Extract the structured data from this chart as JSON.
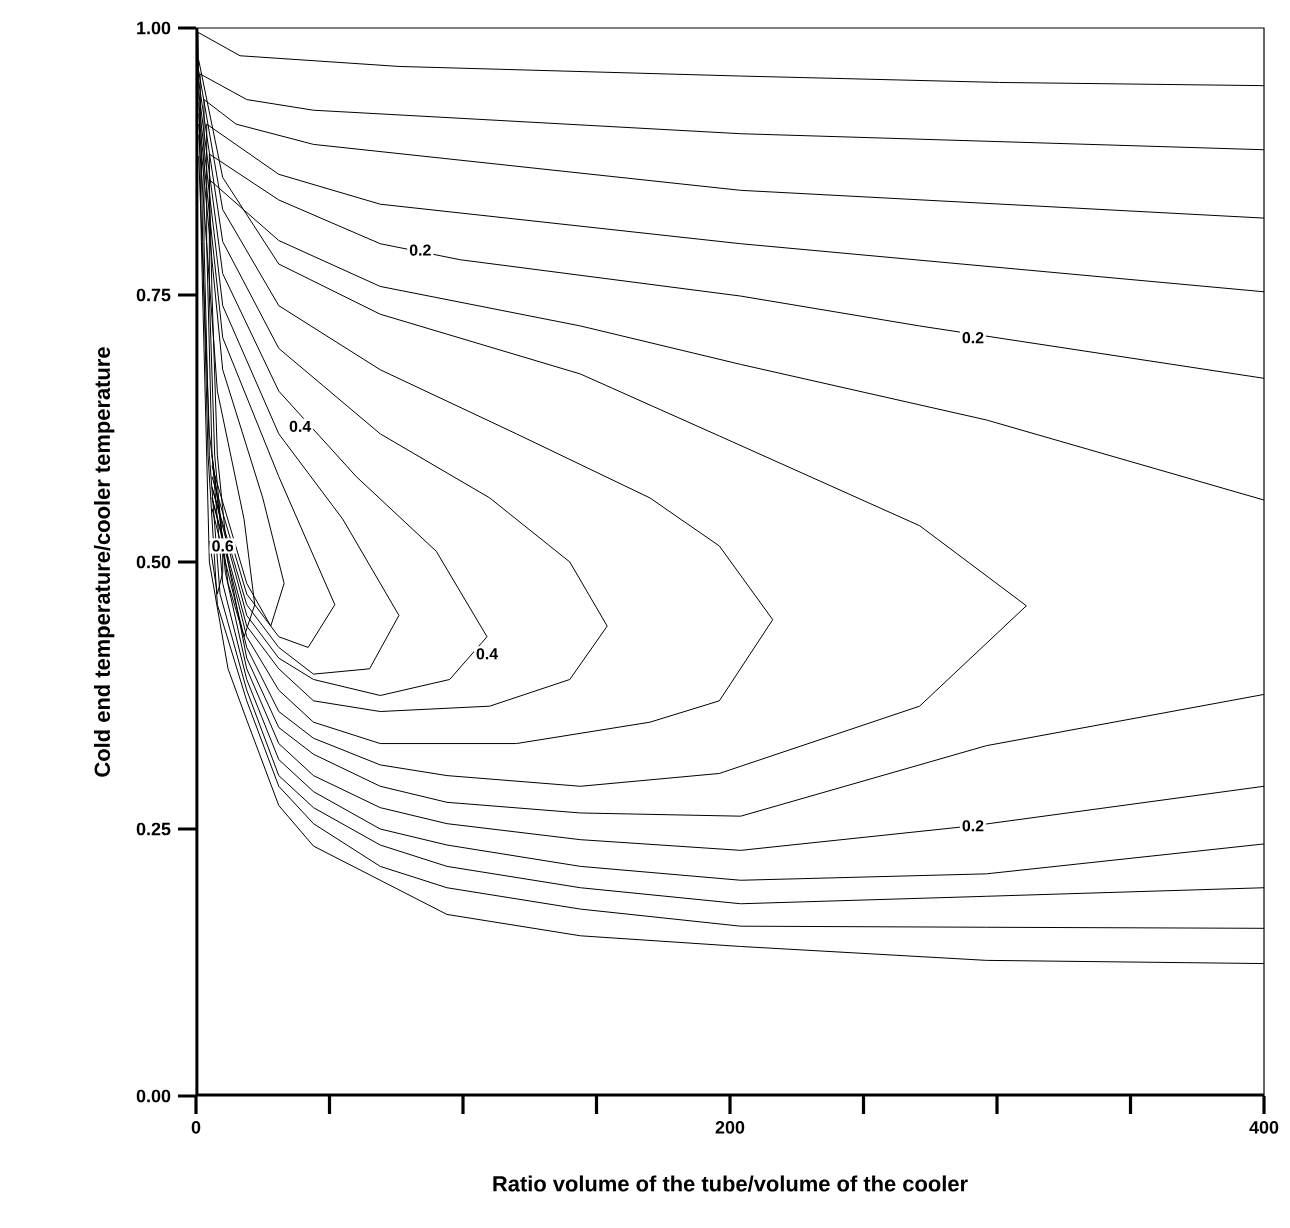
{
  "chart_data": {
    "type": "line",
    "xlabel": "Ratio volume of the tube/volume of the cooler",
    "ylabel": "Cold end temperature/cooler temperature",
    "xlim": [
      0,
      400
    ],
    "ylim": [
      0,
      1
    ],
    "xticks": [
      0,
      {
        "value": 50,
        "label": null
      },
      {
        "value": 100,
        "label": null
      },
      {
        "value": 150,
        "label": null
      },
      200,
      {
        "value": 250,
        "label": null
      },
      {
        "value": 300,
        "label": null
      },
      {
        "value": 350,
        "label": null
      },
      400
    ],
    "yticks": [
      {
        "value": 0,
        "label": "0.00"
      },
      {
        "value": 0.25,
        "label": "0.25"
      },
      {
        "value": 0.5,
        "label": "0.50"
      },
      {
        "value": 0.75,
        "label": "0.75"
      },
      {
        "value": 1,
        "label": "1.00"
      }
    ],
    "series": [
      {
        "color": "#000000",
        "x": [
          400,
          301,
          204,
          76,
          16.5,
          0.7,
          2,
          3,
          5,
          12,
          19,
          31,
          44,
          69,
          94,
          144,
          204,
          296,
          400
        ],
        "values": [
          0.946,
          0.949,
          0.955,
          0.964,
          0.974,
          0.996,
          0.8,
          0.7,
          0.5,
          0.4,
          0.352,
          0.272,
          0.234,
          0.202,
          0.17,
          0.15,
          0.14,
          0.127,
          0.124
        ]
      },
      {
        "color": "#000000",
        "x": [
          400,
          204,
          44,
          19,
          1.5,
          2.5,
          4.5,
          8,
          19,
          31,
          44,
          69,
          94,
          144,
          204,
          296,
          400
        ],
        "values": [
          0.886,
          0.901,
          0.923,
          0.933,
          0.957,
          0.8,
          0.6,
          0.46,
          0.37,
          0.29,
          0.255,
          0.215,
          0.195,
          0.175,
          0.159,
          0.158,
          0.157
        ]
      },
      {
        "color": "#000000",
        "x": [
          400,
          204,
          44,
          15,
          3,
          3,
          5,
          9,
          19,
          31,
          44,
          69,
          94,
          144,
          204,
          296,
          400
        ],
        "values": [
          0.822,
          0.848,
          0.891,
          0.91,
          0.933,
          0.8,
          0.6,
          0.47,
          0.38,
          0.3,
          0.27,
          0.235,
          0.215,
          0.195,
          0.18,
          0.187,
          0.195
        ]
      },
      {
        "color": "#000000",
        "x": [
          400,
          204,
          69,
          31,
          4,
          4,
          6,
          10,
          19,
          31,
          44,
          69,
          94,
          144,
          204,
          296,
          400
        ],
        "values": [
          0.753,
          0.798,
          0.835,
          0.863,
          0.91,
          0.8,
          0.6,
          0.48,
          0.39,
          0.315,
          0.285,
          0.25,
          0.235,
          0.215,
          0.202,
          0.208,
          0.236
        ]
      },
      {
        "color": "#000000",
        "x": [
          400,
          271,
          204,
          99,
          69,
          31,
          5,
          5,
          7,
          11,
          19,
          31,
          44,
          69,
          94,
          144,
          204,
          291,
          400
        ],
        "values": [
          0.672,
          0.721,
          0.749,
          0.783,
          0.798,
          0.839,
          0.882,
          0.75,
          0.6,
          0.49,
          0.4,
          0.33,
          0.3,
          0.27,
          0.255,
          0.24,
          0.23,
          0.253,
          0.29
        ]
      },
      {
        "color": "#000000",
        "x": [
          400,
          296,
          204,
          144,
          69,
          31,
          5,
          6,
          8,
          12,
          19,
          31,
          44,
          69,
          94,
          144,
          204,
          296,
          400
        ],
        "values": [
          0.558,
          0.633,
          0.685,
          0.721,
          0.758,
          0.801,
          0.858,
          0.75,
          0.6,
          0.5,
          0.41,
          0.345,
          0.32,
          0.29,
          0.275,
          0.265,
          0.262,
          0.328,
          0.376
        ]
      },
      {
        "color": "#000000",
        "x": [
          1,
          10,
          31,
          69,
          144,
          196,
          271,
          311,
          271,
          196,
          144,
          94,
          69,
          44,
          31,
          19,
          6
        ],
        "values": [
          0.97,
          0.86,
          0.779,
          0.732,
          0.676,
          0.618,
          0.534,
          0.459,
          0.365,
          0.302,
          0.29,
          0.3,
          0.31,
          0.335,
          0.36,
          0.42,
          0.55
        ]
      },
      {
        "color": "#000000",
        "x": [
          1,
          10,
          31,
          69,
          120,
          170,
          196,
          216,
          196,
          170,
          120,
          69,
          44,
          31,
          19,
          6
        ],
        "values": [
          0.96,
          0.83,
          0.74,
          0.68,
          0.62,
          0.56,
          0.515,
          0.446,
          0.37,
          0.35,
          0.33,
          0.33,
          0.35,
          0.38,
          0.43,
          0.56
        ]
      },
      {
        "color": "#000000",
        "x": [
          1,
          10,
          31,
          69,
          110,
          140,
          154,
          140,
          110,
          69,
          44,
          31,
          19,
          6
        ],
        "values": [
          0.95,
          0.8,
          0.7,
          0.62,
          0.56,
          0.5,
          0.44,
          0.39,
          0.365,
          0.36,
          0.37,
          0.4,
          0.44,
          0.56
        ]
      },
      {
        "color": "#000000",
        "x": [
          1,
          10,
          31,
          60,
          90,
          109,
          95,
          69,
          44,
          31,
          19,
          6
        ],
        "values": [
          0.94,
          0.77,
          0.66,
          0.58,
          0.51,
          0.43,
          0.39,
          0.375,
          0.39,
          0.41,
          0.45,
          0.57
        ]
      },
      {
        "color": "#000000",
        "x": [
          1,
          10,
          31,
          55,
          76,
          65,
          44,
          31,
          19,
          6
        ],
        "values": [
          0.93,
          0.74,
          0.62,
          0.54,
          0.45,
          0.4,
          0.395,
          0.42,
          0.46,
          0.57
        ]
      },
      {
        "color": "#000000",
        "x": [
          1,
          10,
          31,
          52,
          42,
          31,
          19,
          6
        ],
        "values": [
          0.92,
          0.71,
          0.58,
          0.46,
          0.42,
          0.43,
          0.47,
          0.58
        ]
      },
      {
        "color": "#000000",
        "x": [
          1,
          10,
          25,
          33,
          28,
          19,
          6
        ],
        "values": [
          0.91,
          0.68,
          0.56,
          0.48,
          0.44,
          0.48,
          0.59
        ]
      },
      {
        "color": "#000000",
        "x": [
          1,
          8,
          18,
          22,
          18,
          12,
          6
        ],
        "values": [
          0.9,
          0.66,
          0.54,
          0.46,
          0.43,
          0.48,
          0.6
        ]
      },
      {
        "color": "#000000",
        "x": [
          1,
          5,
          10,
          10,
          8,
          5
        ],
        "values": [
          0.88,
          0.62,
          0.52,
          0.49,
          0.47,
          0.52
        ]
      }
    ],
    "annotations": [
      {
        "text": "0.2",
        "x": 84,
        "y": 0.792
      },
      {
        "text": "0.2",
        "x": 291,
        "y": 0.71
      },
      {
        "text": "0.2",
        "x": 291,
        "y": 0.253
      },
      {
        "text": "0.4",
        "x": 39,
        "y": 0.627
      },
      {
        "text": "0.4",
        "x": 109,
        "y": 0.414
      },
      {
        "text": "0.6",
        "x": 10,
        "y": 0.515
      }
    ]
  }
}
